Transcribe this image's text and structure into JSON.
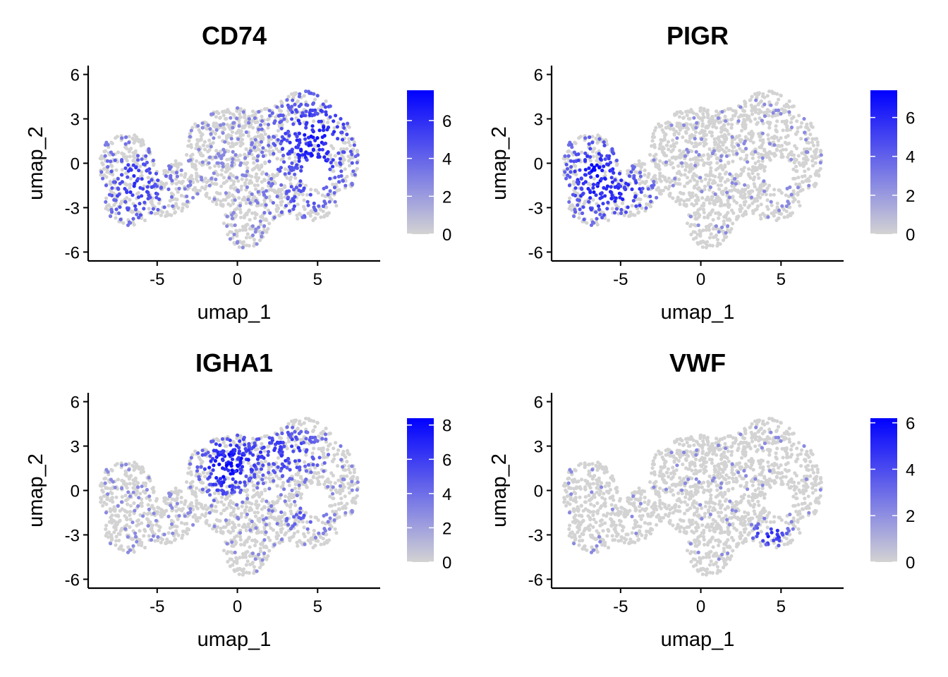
{
  "chart_data": [
    {
      "type": "scatter",
      "title": "CD74",
      "xlabel": "umap_1",
      "ylabel": "umap_2",
      "xticks": [
        "-5",
        "0",
        "5"
      ],
      "yticks": [
        "-6",
        "-3",
        "0",
        "3",
        "6"
      ],
      "xlim": [
        -9.3,
        8.9
      ],
      "ylim": [
        -6.6,
        6.6
      ],
      "colorbar": {
        "min": 0,
        "max": 7.6,
        "ticks": [
          "0",
          "2",
          "4",
          "6"
        ],
        "low_color": "#D3D3D3",
        "high_color": "#0000FF"
      },
      "expression_pattern": "high on the right side and left lobe, low in the centre"
    },
    {
      "type": "scatter",
      "title": "PIGR",
      "xlabel": "umap_1",
      "ylabel": "umap_2",
      "xticks": [
        "-5",
        "0",
        "5"
      ],
      "yticks": [
        "-6",
        "-3",
        "0",
        "3",
        "6"
      ],
      "xlim": [
        -9.3,
        8.9
      ],
      "ylim": [
        -6.6,
        6.6
      ],
      "colorbar": {
        "min": 0,
        "max": 7.4,
        "ticks": [
          "0",
          "2",
          "4",
          "6"
        ],
        "low_color": "#D3D3D3",
        "high_color": "#0000FF"
      },
      "expression_pattern": "high in the left lobe, sparse elsewhere"
    },
    {
      "type": "scatter",
      "title": "IGHA1",
      "xlabel": "umap_1",
      "ylabel": "umap_2",
      "xticks": [
        "-5",
        "0",
        "5"
      ],
      "yticks": [
        "-6",
        "-3",
        "0",
        "3",
        "6"
      ],
      "xlim": [
        -9.3,
        8.9
      ],
      "ylim": [
        -6.6,
        6.6
      ],
      "colorbar": {
        "min": 0,
        "max": 8.4,
        "ticks": [
          "0",
          "2",
          "4",
          "6",
          "8"
        ],
        "low_color": "#D3D3D3",
        "high_color": "#0000FF"
      },
      "expression_pattern": "high in the centre-right upper region"
    },
    {
      "type": "scatter",
      "title": "VWF",
      "xlabel": "umap_1",
      "ylabel": "umap_2",
      "xticks": [
        "-5",
        "0",
        "5"
      ],
      "yticks": [
        "-6",
        "-3",
        "0",
        "3",
        "6"
      ],
      "xlim": [
        -9.3,
        8.9
      ],
      "ylim": [
        -6.6,
        6.6
      ],
      "colorbar": {
        "min": 0,
        "max": 6.2,
        "ticks": [
          "0",
          "2",
          "4",
          "6"
        ],
        "low_color": "#D3D3D3",
        "high_color": "#0000FF"
      },
      "expression_pattern": "mostly low, a small cluster in the lower right"
    }
  ]
}
